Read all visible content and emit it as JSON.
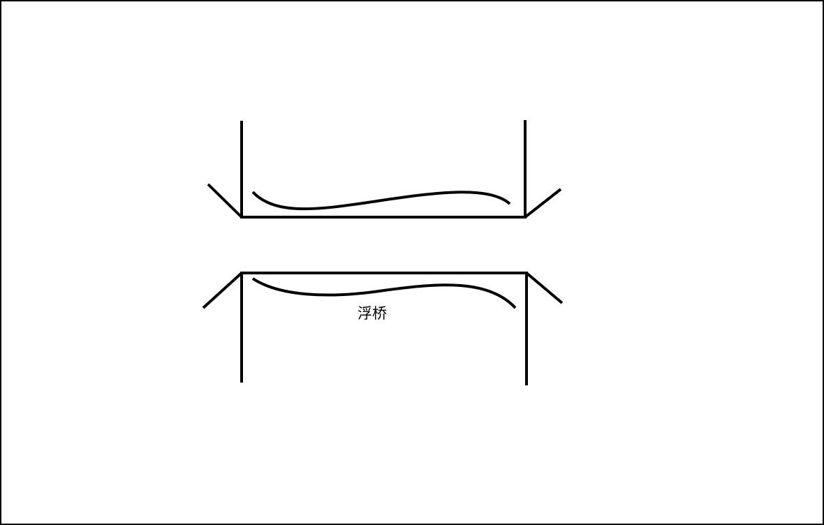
{
  "diagram": {
    "label": "浮桥",
    "stroke_color": "#000000",
    "background_color": "#ffffff"
  }
}
